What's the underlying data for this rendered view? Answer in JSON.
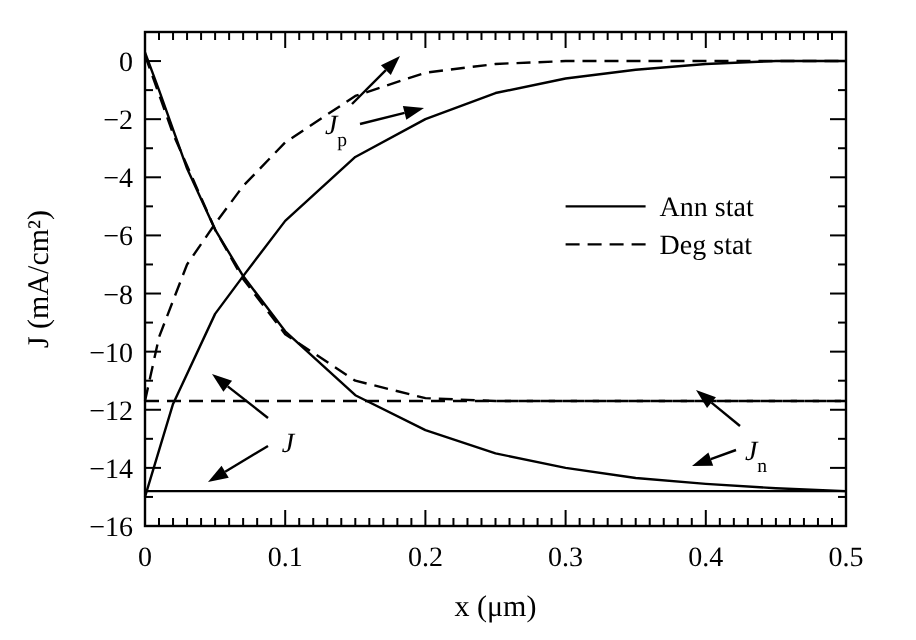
{
  "chart_data": {
    "type": "line",
    "xlabel": "x (μm)",
    "ylabel": "J (mA/cm²)",
    "xlim": [
      0,
      0.5
    ],
    "ylim": [
      -16,
      1
    ],
    "xticks": [
      0,
      {
        "value": 0.01,
        "label": null
      },
      {
        "value": 0.02,
        "label": null
      },
      {
        "value": 0.03,
        "label": null
      },
      {
        "value": 0.04,
        "label": null
      },
      {
        "value": 0.05,
        "label": null
      },
      {
        "value": 0.06,
        "label": null
      },
      {
        "value": 0.07,
        "label": null
      },
      {
        "value": 0.08,
        "label": null
      },
      {
        "value": 0.09,
        "label": null
      },
      0.1,
      {
        "value": 0.11,
        "label": null
      },
      {
        "value": 0.12,
        "label": null
      },
      {
        "value": 0.13,
        "label": null
      },
      {
        "value": 0.14,
        "label": null
      },
      {
        "value": 0.15,
        "label": null
      },
      {
        "value": 0.16,
        "label": null
      },
      {
        "value": 0.17,
        "label": null
      },
      {
        "value": 0.18,
        "label": null
      },
      {
        "value": 0.19,
        "label": null
      },
      0.2,
      {
        "value": 0.21,
        "label": null
      },
      {
        "value": 0.22,
        "label": null
      },
      {
        "value": 0.23,
        "label": null
      },
      {
        "value": 0.24,
        "label": null
      },
      {
        "value": 0.25,
        "label": null
      },
      {
        "value": 0.26,
        "label": null
      },
      {
        "value": 0.27,
        "label": null
      },
      {
        "value": 0.28,
        "label": null
      },
      {
        "value": 0.29,
        "label": null
      },
      0.3,
      {
        "value": 0.31,
        "label": null
      },
      {
        "value": 0.32,
        "label": null
      },
      {
        "value": 0.33,
        "label": null
      },
      {
        "value": 0.34,
        "label": null
      },
      {
        "value": 0.35,
        "label": null
      },
      {
        "value": 0.36,
        "label": null
      },
      {
        "value": 0.37,
        "label": null
      },
      {
        "value": 0.38,
        "label": null
      },
      {
        "value": 0.39,
        "label": null
      },
      0.4,
      {
        "value": 0.41,
        "label": null
      },
      {
        "value": 0.42,
        "label": null
      },
      {
        "value": 0.43,
        "label": null
      },
      {
        "value": 0.44,
        "label": null
      },
      {
        "value": 0.45,
        "label": null
      },
      {
        "value": 0.46,
        "label": null
      },
      {
        "value": 0.47,
        "label": null
      },
      {
        "value": 0.48,
        "label": null
      },
      {
        "value": 0.49,
        "label": null
      },
      0.5
    ],
    "yticks": [
      -16,
      {
        "value": -15,
        "label": null
      },
      -14,
      {
        "value": -13,
        "label": null
      },
      -12,
      {
        "value": -11,
        "label": null
      },
      -10,
      {
        "value": -9,
        "label": null
      },
      -8,
      {
        "value": -7,
        "label": null
      },
      -6,
      {
        "value": -5,
        "label": null
      },
      -4,
      {
        "value": -3,
        "label": null
      },
      -2,
      {
        "value": -1,
        "label": null
      },
      0
    ],
    "grid": false,
    "legend": "right",
    "marker": "none",
    "series": [
      {
        "name": "Ann stat",
        "color": "#000000",
        "line_style": "solid",
        "x": [
          0,
          0.02,
          0.05,
          0.07,
          0.1,
          0.15,
          0.2,
          0.25,
          0.3,
          0.35,
          0.4,
          0.45,
          0.5
        ],
        "values": [
          -15,
          -11.8,
          -8.7,
          -7.4,
          -5.5,
          -3.3,
          -2,
          -1.1,
          -0.6,
          -0.3,
          -0.1,
          0,
          0
        ]
      },
      {
        "color": "#000000",
        "line_style": "solid",
        "x": [
          0,
          0.01,
          0.03,
          0.05,
          0.07,
          0.1,
          0.15,
          0.2,
          0.25,
          0.3,
          0.35,
          0.4,
          0.45,
          0.5
        ],
        "values": [
          0.3,
          -1,
          -3.7,
          -5.8,
          -7.4,
          -9.3,
          -11.5,
          -12.7,
          -13.5,
          -14,
          -14.35,
          -14.55,
          -14.7,
          -14.8
        ]
      },
      {
        "color": "#000000",
        "line_style": "solid",
        "x": [
          0,
          0.5
        ],
        "values": [
          -14.8,
          -14.8
        ]
      },
      {
        "name": "Deg stat",
        "color": "#000000",
        "line_style": "dashed",
        "x": [
          0,
          0.01,
          0.03,
          0.05,
          0.07,
          0.1,
          0.15,
          0.2,
          0.25,
          0.3,
          0.5
        ],
        "values": [
          -11.7,
          -9.5,
          -7,
          -5.6,
          -4.3,
          -2.8,
          -1.2,
          -0.4,
          -0.1,
          0,
          0
        ]
      },
      {
        "color": "#000000",
        "line_style": "dashed",
        "x": [
          0,
          0.02,
          0.05,
          0.07,
          0.1,
          0.15,
          0.2,
          0.25,
          0.5
        ],
        "values": [
          0.2,
          -2.5,
          -5.8,
          -7.5,
          -9.4,
          -11,
          -11.6,
          -11.7,
          -11.7
        ]
      },
      {
        "color": "#000000",
        "line_style": "dashed",
        "x": [
          0,
          0.5
        ],
        "values": [
          -11.7,
          -11.7
        ]
      }
    ],
    "annotations": [
      "J",
      "J$_{p}$",
      "J$_{n}$"
    ]
  }
}
